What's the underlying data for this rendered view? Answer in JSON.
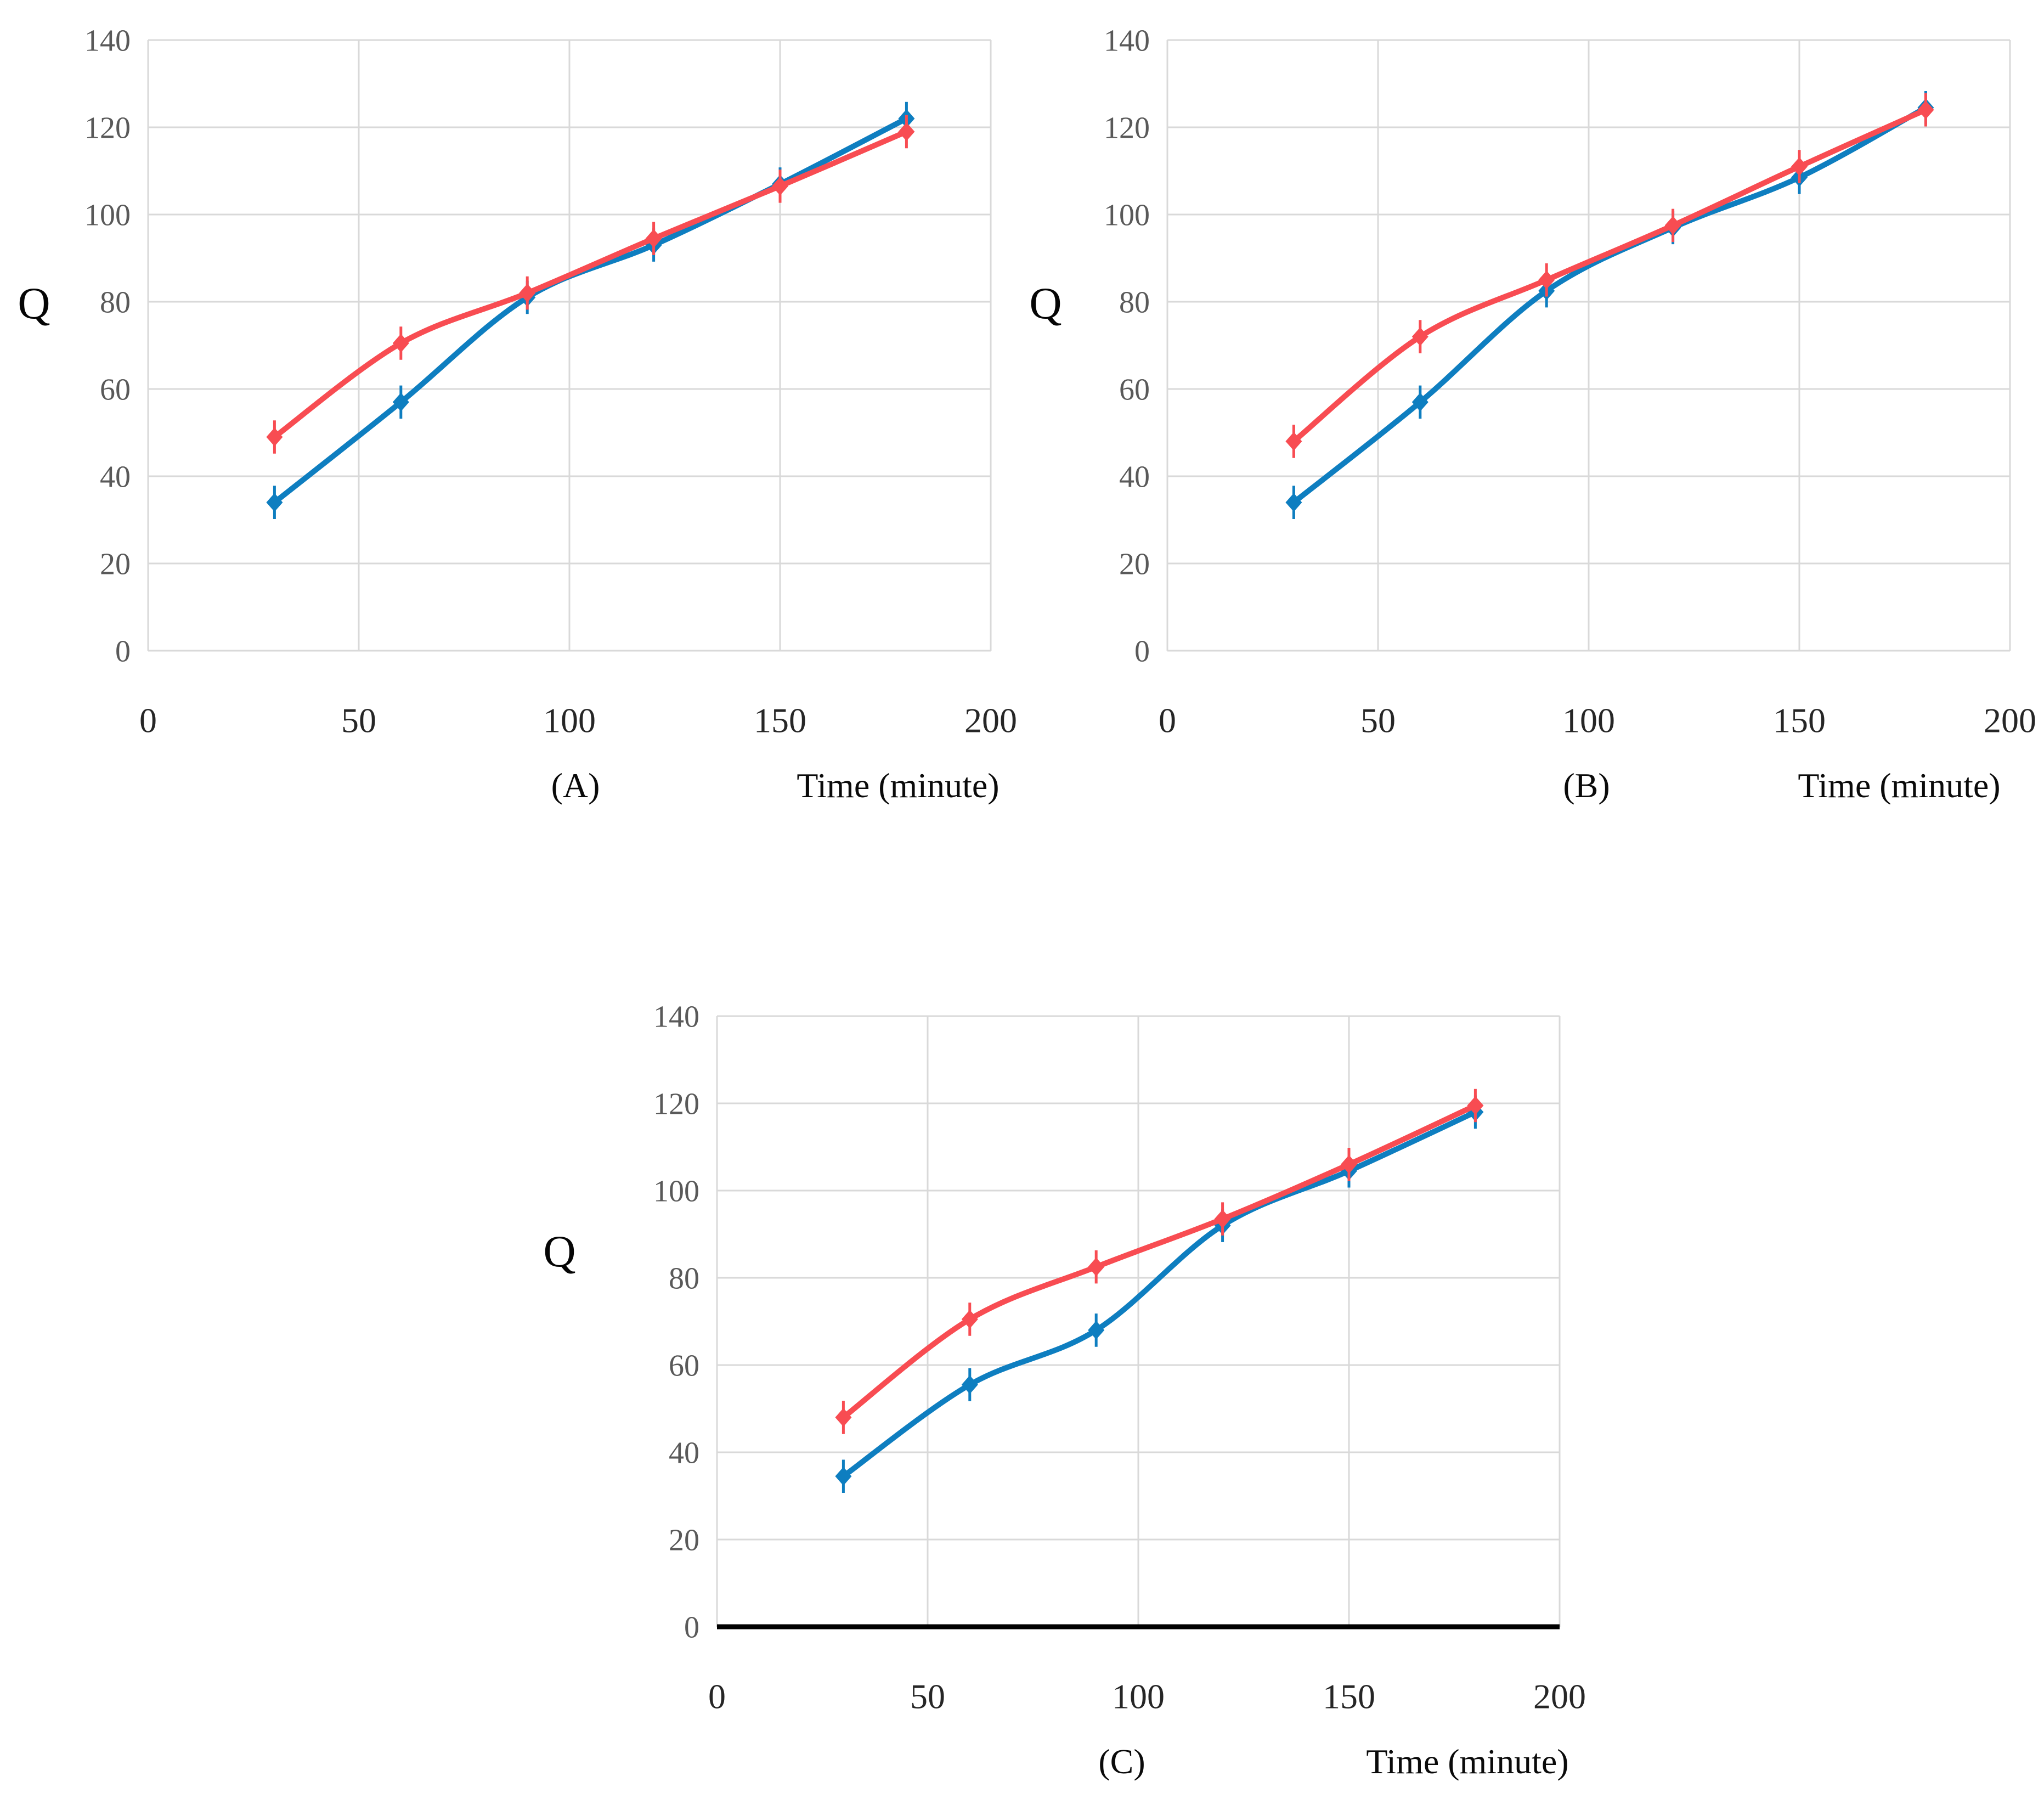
{
  "figure": {
    "background": "#ffffff",
    "grid_color": "#d9d9d9",
    "ytick_color": "#595959",
    "xtick_color": "#262626",
    "label_color": "#0a0a0a",
    "blue": "#0e7ec0",
    "red": "#f84c52"
  },
  "chart_data": [
    {
      "id": "A",
      "type": "line",
      "caption": "(A)",
      "xlabel": "Time (minute)",
      "ylabel": "Q",
      "xlim": [
        0,
        200
      ],
      "ylim": [
        0,
        140
      ],
      "xticks": [
        0,
        50,
        100,
        150,
        200
      ],
      "yticks": [
        0,
        20,
        40,
        60,
        80,
        100,
        120,
        140
      ],
      "x": [
        30,
        60,
        90,
        120,
        150,
        180
      ],
      "series": [
        {
          "name": "blue-series",
          "color": "#0e7ec0",
          "values": [
            34,
            57,
            81,
            93,
            107,
            122
          ]
        },
        {
          "name": "red-series",
          "color": "#f84c52",
          "values": [
            49,
            70.5,
            82,
            94.5,
            106.5,
            119
          ]
        }
      ],
      "error_bar": 2.8,
      "black_x_axis": false,
      "grid": true,
      "legend": "none"
    },
    {
      "id": "B",
      "type": "line",
      "caption": "(B)",
      "xlabel": "Time (minute)",
      "ylabel": "Q",
      "xlim": [
        0,
        200
      ],
      "ylim": [
        0,
        140
      ],
      "xticks": [
        0,
        50,
        100,
        150,
        200
      ],
      "yticks": [
        0,
        20,
        40,
        60,
        80,
        100,
        120,
        140
      ],
      "x": [
        30,
        60,
        90,
        120,
        150,
        180
      ],
      "series": [
        {
          "name": "blue-series",
          "color": "#0e7ec0",
          "values": [
            34,
            57,
            82.5,
            97,
            108.5,
            124.5
          ]
        },
        {
          "name": "red-series",
          "color": "#f84c52",
          "values": [
            48,
            72,
            85,
            97.5,
            111,
            124
          ]
        }
      ],
      "error_bar": 2.8,
      "black_x_axis": false,
      "grid": true,
      "legend": "none"
    },
    {
      "id": "C",
      "type": "line",
      "caption": "(C)",
      "xlabel": "Time (minute)",
      "ylabel": "Q",
      "xlim": [
        0,
        200
      ],
      "ylim": [
        0,
        140
      ],
      "xticks": [
        0,
        50,
        100,
        150,
        200
      ],
      "yticks": [
        0,
        20,
        40,
        60,
        80,
        100,
        120,
        140
      ],
      "x": [
        30,
        60,
        90,
        120,
        150,
        180
      ],
      "series": [
        {
          "name": "blue-series",
          "color": "#0e7ec0",
          "values": [
            34.5,
            55.5,
            68,
            92,
            104.5,
            118
          ]
        },
        {
          "name": "red-series",
          "color": "#f84c52",
          "values": [
            48,
            70.5,
            82.5,
            93.5,
            106,
            119.5
          ]
        }
      ],
      "error_bar": 2.8,
      "black_x_axis": true,
      "grid": true,
      "legend": "none"
    }
  ]
}
